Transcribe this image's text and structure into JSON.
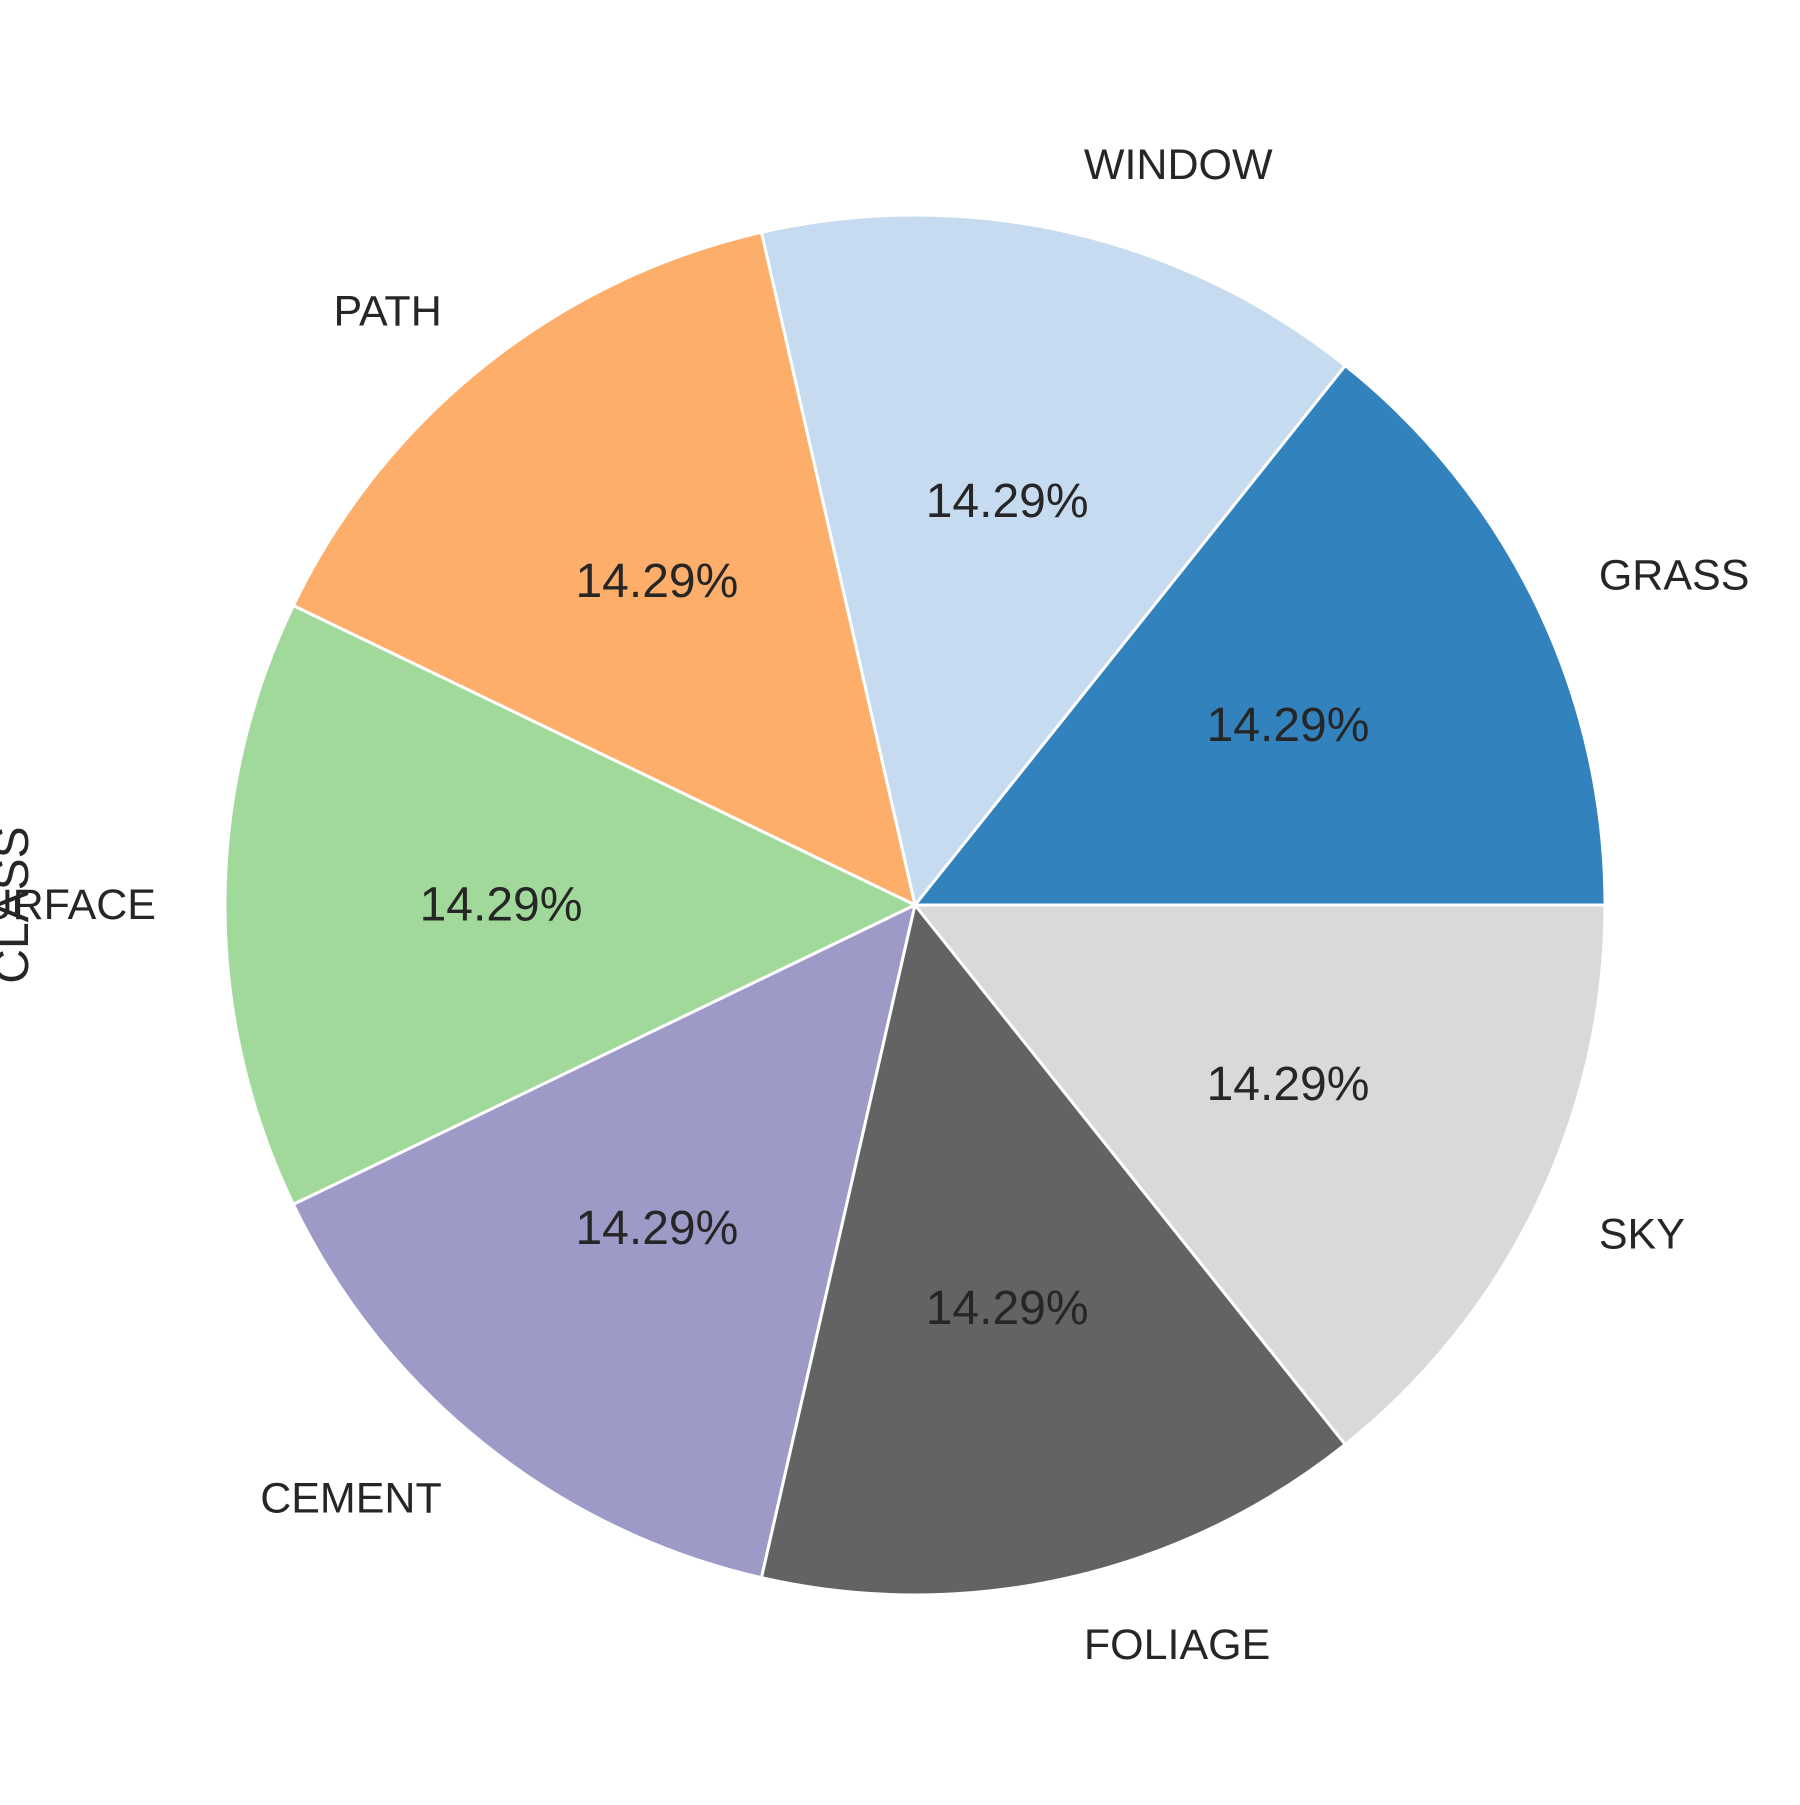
{
  "chart_data": {
    "type": "pie",
    "ylabel": "CLASS",
    "categories": [
      "GRASS",
      "WINDOW",
      "PATH",
      "SURFACE",
      "CEMENT",
      "FOLIAGE",
      "SKY"
    ],
    "values": [
      1,
      1,
      1,
      1,
      1,
      1,
      1
    ],
    "percent_labels": [
      "14.29%",
      "14.29%",
      "14.29%",
      "14.29%",
      "14.29%",
      "14.29%",
      "14.29%"
    ],
    "start_angle_deg": 0,
    "direction": "counterclockwise",
    "colors": [
      "#3182bd",
      "#c6dbef",
      "#fdae6b",
      "#a1d99b",
      "#9e9ac8",
      "#636363",
      "#d9d9d9"
    ]
  }
}
